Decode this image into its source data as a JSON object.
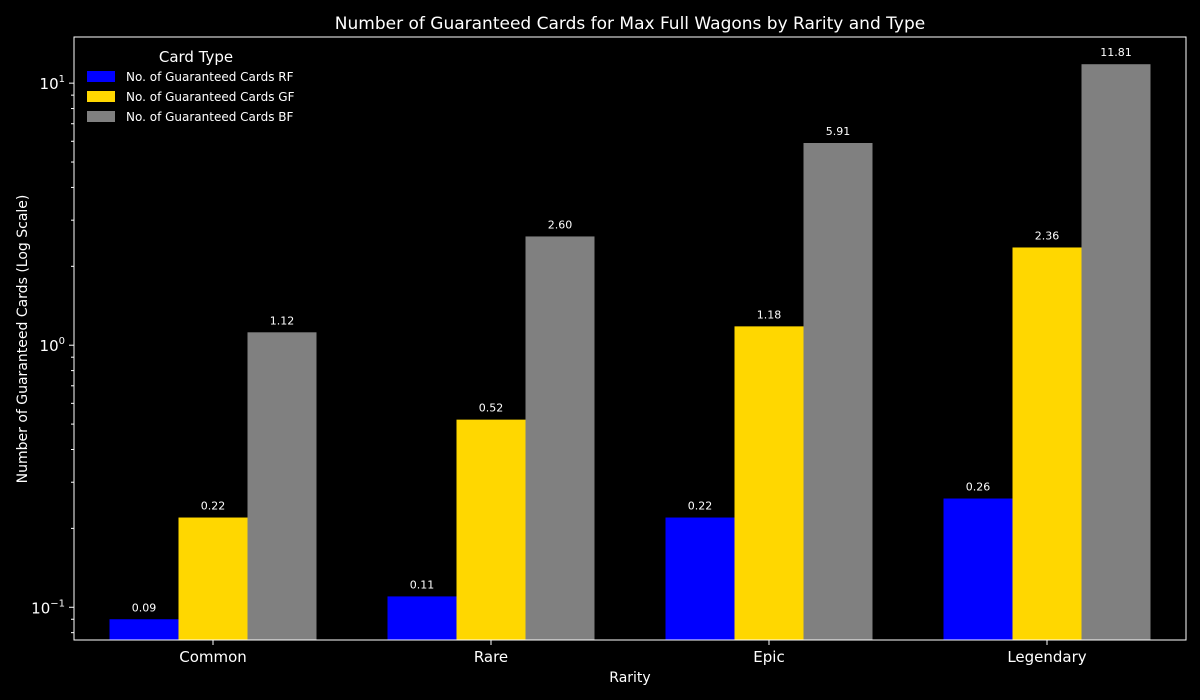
{
  "chart_data": {
    "type": "bar",
    "title": "Number of Guaranteed Cards for Max Full Wagons by Rarity and Type",
    "xlabel": "Rarity",
    "ylabel": "Number of Guaranteed Cards (Log Scale)",
    "yscale": "log",
    "ylim": [
      0.075,
      15
    ],
    "y_ticks": [
      {
        "value": 0.1,
        "base": "10",
        "exp": "−1"
      },
      {
        "value": 1,
        "base": "10",
        "exp": "0"
      },
      {
        "value": 10,
        "base": "10",
        "exp": "1"
      }
    ],
    "categories": [
      "Common",
      "Rare",
      "Epic",
      "Legendary"
    ],
    "legend_title": "Card Type",
    "legend_position": "top-left",
    "grid": false,
    "series": [
      {
        "name": "No. of Guaranteed Cards RF",
        "color": "#0000ff",
        "values": [
          0.09,
          0.11,
          0.22,
          0.26
        ],
        "labels": [
          "0.09",
          "0.11",
          "0.22",
          "0.26"
        ]
      },
      {
        "name": "No. of Guaranteed Cards GF",
        "color": "#ffd700",
        "values": [
          0.22,
          0.52,
          1.18,
          2.36
        ],
        "labels": [
          "0.22",
          "0.52",
          "1.18",
          "2.36"
        ]
      },
      {
        "name": "No. of Guaranteed Cards BF",
        "color": "#808080",
        "values": [
          1.12,
          2.6,
          5.91,
          11.81
        ],
        "labels": [
          "1.12",
          "2.60",
          "5.91",
          "11.81"
        ]
      }
    ]
  }
}
